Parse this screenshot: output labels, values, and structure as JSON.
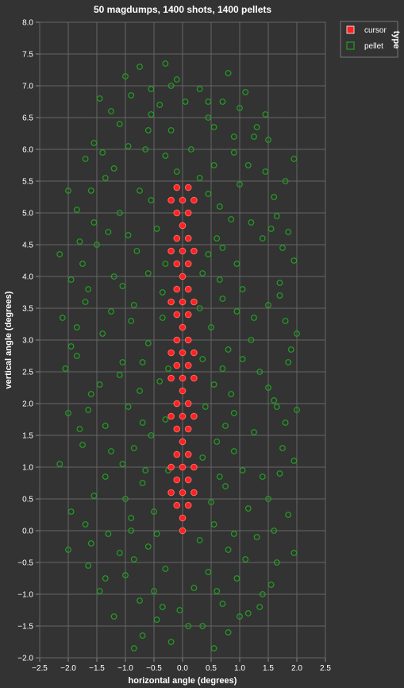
{
  "chart_data": {
    "type": "scatter",
    "title": "50 magdumps, 1400 shots, 1400 pellets",
    "xlabel": "horizontal angle (degrees)",
    "ylabel": "vertical angle (degrees)",
    "xlim": [
      -2.5,
      2.5
    ],
    "ylim": [
      -2.0,
      8.0
    ],
    "x_ticks": [
      "−2.5",
      "−2.0",
      "−1.5",
      "−1.0",
      "−0.5",
      "0.0",
      "0.5",
      "1.0",
      "1.5",
      "2.0",
      "2.5"
    ],
    "y_ticks": [
      "−2.0",
      "−1.5",
      "−1.0",
      "−0.5",
      "0.0",
      "0.5",
      "1.0",
      "1.5",
      "2.0",
      "2.5",
      "3.0",
      "3.5",
      "4.0",
      "4.5",
      "5.0",
      "5.5",
      "6.0",
      "6.5",
      "7.0",
      "7.5",
      "8.0"
    ],
    "grid": true,
    "legend": {
      "title": "type",
      "placement": "top-right",
      "entries": [
        {
          "name": "cursor",
          "color": "#ff2020"
        },
        {
          "name": "pellet",
          "color": "#22a022"
        }
      ]
    },
    "series": [
      {
        "name": "cursor",
        "color": "#ff2020",
        "points": [
          [
            0.0,
            0.0
          ],
          [
            0.0,
            0.2
          ],
          [
            -0.1,
            0.4
          ],
          [
            0.1,
            0.4
          ],
          [
            -0.2,
            0.6
          ],
          [
            0.0,
            0.6
          ],
          [
            0.2,
            0.6
          ],
          [
            -0.1,
            0.8
          ],
          [
            0.1,
            0.8
          ],
          [
            -0.2,
            1.0
          ],
          [
            0.0,
            1.0
          ],
          [
            0.2,
            1.0
          ],
          [
            -0.1,
            1.2
          ],
          [
            0.1,
            1.2
          ],
          [
            0.0,
            1.4
          ],
          [
            -0.1,
            1.6
          ],
          [
            0.1,
            1.6
          ],
          [
            -0.2,
            1.8
          ],
          [
            0.0,
            1.8
          ],
          [
            0.2,
            1.8
          ],
          [
            -0.1,
            2.0
          ],
          [
            0.1,
            2.0
          ],
          [
            0.0,
            2.2
          ],
          [
            -0.2,
            2.4
          ],
          [
            0.0,
            2.4
          ],
          [
            0.2,
            2.4
          ],
          [
            -0.1,
            2.6
          ],
          [
            0.1,
            2.6
          ],
          [
            -0.2,
            2.8
          ],
          [
            0.0,
            2.8
          ],
          [
            0.2,
            2.8
          ],
          [
            -0.1,
            3.0
          ],
          [
            0.1,
            3.0
          ],
          [
            0.0,
            3.2
          ],
          [
            -0.1,
            3.4
          ],
          [
            0.1,
            3.4
          ],
          [
            -0.2,
            3.6
          ],
          [
            0.0,
            3.6
          ],
          [
            0.2,
            3.6
          ],
          [
            -0.1,
            3.8
          ],
          [
            0.1,
            3.8
          ],
          [
            0.0,
            4.0
          ],
          [
            -0.1,
            4.2
          ],
          [
            0.1,
            4.2
          ],
          [
            -0.2,
            4.4
          ],
          [
            0.0,
            4.4
          ],
          [
            0.2,
            4.4
          ],
          [
            -0.1,
            4.6
          ],
          [
            0.1,
            4.6
          ],
          [
            0.0,
            4.8
          ],
          [
            -0.1,
            5.0
          ],
          [
            0.1,
            5.0
          ],
          [
            -0.2,
            5.2
          ],
          [
            0.0,
            5.2
          ],
          [
            0.2,
            5.2
          ],
          [
            -0.1,
            5.4
          ],
          [
            0.1,
            5.4
          ]
        ]
      },
      {
        "name": "pellet",
        "color": "#22a022",
        "points": [
          [
            -0.3,
            7.35
          ],
          [
            0.8,
            7.2
          ],
          [
            -0.75,
            7.3
          ],
          [
            0.3,
            6.95
          ],
          [
            -0.9,
            6.85
          ],
          [
            0.7,
            6.75
          ],
          [
            -1.45,
            6.8
          ],
          [
            1.0,
            6.65
          ],
          [
            -0.55,
            6.55
          ],
          [
            0.45,
            6.5
          ],
          [
            -0.1,
            7.1
          ],
          [
            0.9,
            6.2
          ],
          [
            -1.1,
            6.4
          ],
          [
            1.3,
            6.35
          ],
          [
            -0.6,
            6.3
          ],
          [
            -1.55,
            6.1
          ],
          [
            1.5,
            6.15
          ],
          [
            1.95,
            5.85
          ],
          [
            -1.7,
            5.85
          ],
          [
            0.55,
            5.75
          ],
          [
            -0.3,
            5.9
          ],
          [
            -2.0,
            5.35
          ],
          [
            1.8,
            5.5
          ],
          [
            -1.35,
            5.55
          ],
          [
            1.0,
            5.45
          ],
          [
            -0.55,
            5.2
          ],
          [
            0.45,
            5.3
          ],
          [
            -1.85,
            5.05
          ],
          [
            1.65,
            4.95
          ],
          [
            -1.1,
            5.0
          ],
          [
            0.85,
            4.9
          ],
          [
            -0.45,
            4.75
          ],
          [
            0.6,
            4.6
          ],
          [
            -2.15,
            4.35
          ],
          [
            1.95,
            4.25
          ],
          [
            -1.5,
            4.5
          ],
          [
            1.4,
            4.6
          ],
          [
            -0.8,
            4.4
          ],
          [
            0.95,
            4.2
          ],
          [
            -1.95,
            3.95
          ],
          [
            1.7,
            3.9
          ],
          [
            -1.2,
            4.0
          ],
          [
            0.35,
            4.05
          ],
          [
            -0.35,
            3.75
          ],
          [
            0.7,
            3.65
          ],
          [
            -1.7,
            3.6
          ],
          [
            1.5,
            3.55
          ],
          [
            -2.1,
            3.35
          ],
          [
            2.0,
            3.1
          ],
          [
            -0.9,
            3.3
          ],
          [
            0.5,
            3.2
          ],
          [
            -1.4,
            3.1
          ],
          [
            1.2,
            3.0
          ],
          [
            -0.6,
            2.95
          ],
          [
            0.8,
            2.85
          ],
          [
            -1.85,
            2.75
          ],
          [
            1.85,
            2.65
          ],
          [
            -2.05,
            2.55
          ],
          [
            -1.1,
            2.45
          ],
          [
            1.35,
            2.5
          ],
          [
            -0.4,
            2.35
          ],
          [
            0.55,
            2.3
          ],
          [
            -1.6,
            2.15
          ],
          [
            1.6,
            2.05
          ],
          [
            -2.0,
            1.85
          ],
          [
            2.0,
            1.9
          ],
          [
            -0.95,
            1.95
          ],
          [
            0.9,
            1.85
          ],
          [
            -1.35,
            1.65
          ],
          [
            1.25,
            1.55
          ],
          [
            -0.55,
            1.5
          ],
          [
            0.6,
            1.4
          ],
          [
            -1.75,
            1.35
          ],
          [
            1.75,
            1.3
          ],
          [
            -2.15,
            1.05
          ],
          [
            1.95,
            1.1
          ],
          [
            -1.05,
            1.05
          ],
          [
            1.05,
            0.95
          ],
          [
            -0.7,
            0.75
          ],
          [
            0.75,
            0.7
          ],
          [
            -1.55,
            0.55
          ],
          [
            1.5,
            0.5
          ],
          [
            -1.95,
            0.3
          ],
          [
            1.85,
            0.25
          ],
          [
            -0.9,
            0.2
          ],
          [
            0.55,
            0.1
          ],
          [
            -1.3,
            -0.05
          ],
          [
            1.3,
            -0.1
          ],
          [
            -2.0,
            -0.3
          ],
          [
            1.95,
            -0.35
          ],
          [
            -0.6,
            -0.25
          ],
          [
            0.8,
            -0.3
          ],
          [
            -1.65,
            -0.55
          ],
          [
            1.65,
            -0.5
          ],
          [
            -1.0,
            -0.7
          ],
          [
            0.95,
            -0.75
          ],
          [
            -0.3,
            -0.6
          ],
          [
            0.45,
            -0.65
          ],
          [
            -1.45,
            -0.95
          ],
          [
            1.4,
            -1.0
          ],
          [
            -0.75,
            -1.1
          ],
          [
            0.7,
            -1.15
          ],
          [
            -1.2,
            -1.35
          ],
          [
            1.15,
            -1.3
          ],
          [
            -0.45,
            -1.4
          ],
          [
            0.35,
            -1.5
          ],
          [
            -0.7,
            -1.65
          ],
          [
            0.8,
            -1.6
          ],
          [
            -0.2,
            -1.75
          ],
          [
            0.55,
            -1.85
          ],
          [
            -0.85,
            -1.85
          ],
          [
            1.55,
            -0.85
          ],
          [
            -1.6,
            -0.2
          ],
          [
            0.2,
            -0.9
          ],
          [
            -0.05,
            -1.25
          ],
          [
            1.0,
            -1.35
          ],
          [
            -1.0,
            0.5
          ],
          [
            1.15,
            0.35
          ],
          [
            -0.25,
            0.95
          ],
          [
            0.35,
            1.15
          ],
          [
            -1.25,
            1.25
          ],
          [
            1.4,
            0.85
          ],
          [
            -0.3,
            1.75
          ],
          [
            0.4,
            1.95
          ],
          [
            -1.05,
            2.65
          ],
          [
            1.05,
            2.7
          ],
          [
            -0.25,
            2.55
          ],
          [
            0.35,
            2.7
          ],
          [
            -1.25,
            3.45
          ],
          [
            1.25,
            3.35
          ],
          [
            -0.35,
            3.35
          ],
          [
            0.3,
            3.5
          ],
          [
            -1.05,
            3.85
          ],
          [
            1.05,
            3.8
          ],
          [
            -0.3,
            4.2
          ],
          [
            0.45,
            4.35
          ],
          [
            -1.3,
            4.7
          ],
          [
            1.2,
            4.85
          ],
          [
            -0.75,
            5.35
          ],
          [
            0.65,
            5.1
          ],
          [
            -1.2,
            5.7
          ],
          [
            1.15,
            5.75
          ],
          [
            -0.2,
            6.3
          ],
          [
            0.15,
            6.0
          ],
          [
            -0.95,
            6.05
          ],
          [
            0.55,
            6.35
          ],
          [
            -0.4,
            6.7
          ],
          [
            1.25,
            6.2
          ],
          [
            -1.55,
            4.85
          ],
          [
            1.55,
            4.75
          ],
          [
            -1.75,
            4.2
          ],
          [
            1.75,
            4.45
          ],
          [
            -1.85,
            3.2
          ],
          [
            1.8,
            3.3
          ],
          [
            -1.45,
            2.3
          ],
          [
            1.5,
            2.25
          ],
          [
            -1.8,
            1.6
          ],
          [
            1.8,
            1.7
          ],
          [
            -1.35,
            0.85
          ],
          [
            1.7,
            0.9
          ],
          [
            -0.5,
            0.3
          ],
          [
            0.5,
            0.45
          ],
          [
            -0.45,
            -0.05
          ],
          [
            0.3,
            -0.15
          ],
          [
            -1.1,
            -0.35
          ],
          [
            1.1,
            -0.45
          ],
          [
            -0.2,
            7.0
          ],
          [
            0.05,
            6.75
          ],
          [
            -0.65,
            6.0
          ],
          [
            0.9,
            5.95
          ],
          [
            -1.6,
            5.35
          ],
          [
            1.6,
            5.25
          ],
          [
            -0.1,
            5.65
          ],
          [
            0.3,
            5.55
          ],
          [
            -0.95,
            4.65
          ],
          [
            0.7,
            4.45
          ],
          [
            -0.6,
            4.05
          ],
          [
            0.65,
            3.95
          ],
          [
            -0.85,
            3.55
          ],
          [
            0.95,
            3.45
          ],
          [
            -0.7,
            2.65
          ],
          [
            0.7,
            2.55
          ],
          [
            -0.75,
            2.2
          ],
          [
            0.85,
            2.15
          ],
          [
            -0.7,
            1.7
          ],
          [
            0.75,
            1.65
          ],
          [
            -0.85,
            1.3
          ],
          [
            0.9,
            1.25
          ],
          [
            -0.65,
            0.95
          ],
          [
            0.65,
            0.85
          ],
          [
            -0.9,
            0.0
          ],
          [
            0.9,
            -0.05
          ],
          [
            -0.85,
            -0.45
          ],
          [
            0.6,
            -0.95
          ],
          [
            -0.5,
            -0.95
          ],
          [
            1.35,
            -1.2
          ],
          [
            -1.35,
            -0.75
          ],
          [
            0.1,
            -1.5
          ],
          [
            -0.35,
            -1.2
          ],
          [
            1.6,
            0.0
          ],
          [
            -1.7,
            0.1
          ],
          [
            1.65,
            1.95
          ],
          [
            -1.65,
            1.9
          ],
          [
            1.9,
            2.85
          ],
          [
            -1.95,
            2.9
          ],
          [
            1.7,
            3.7
          ],
          [
            -1.65,
            3.8
          ],
          [
            1.85,
            4.7
          ],
          [
            -1.8,
            4.55
          ],
          [
            1.45,
            5.65
          ],
          [
            -1.4,
            5.95
          ],
          [
            0.45,
            6.75
          ],
          [
            -0.55,
            6.95
          ],
          [
            1.1,
            6.9
          ],
          [
            -1.0,
            7.15
          ],
          [
            -1.25,
            6.6
          ],
          [
            1.45,
            6.55
          ]
        ]
      }
    ]
  }
}
